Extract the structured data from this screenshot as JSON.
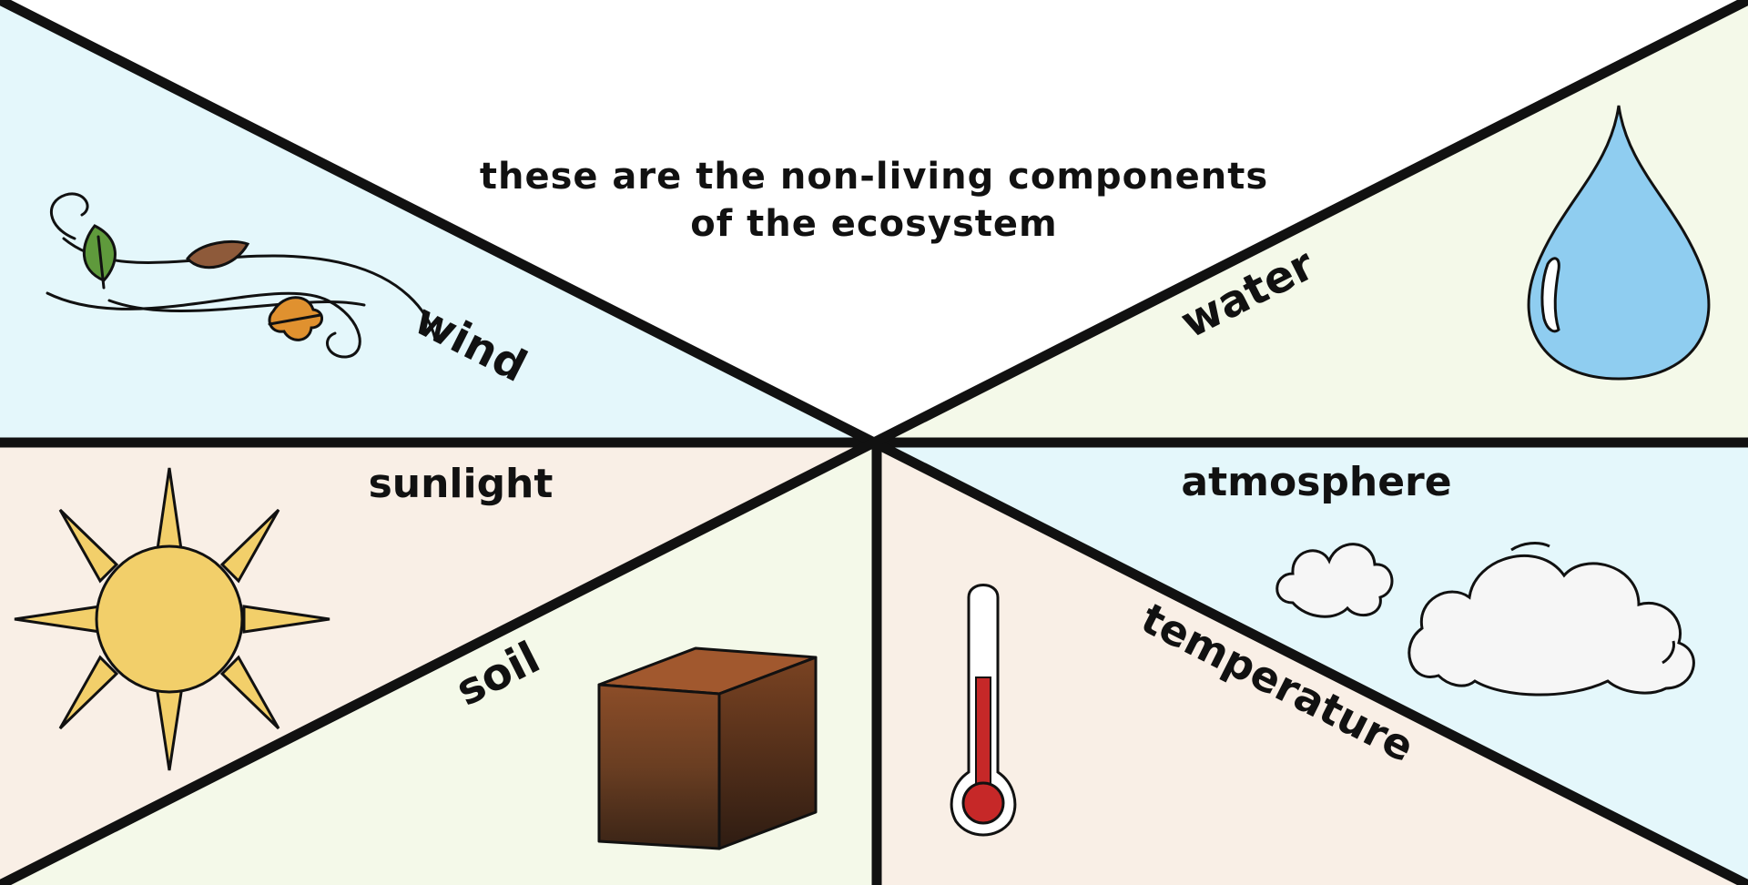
{
  "title": {
    "line1": "these are the non-living components",
    "line2": "of the ecosystem"
  },
  "labels": {
    "wind": "wind",
    "water": "water",
    "sunlight": "sunlight",
    "atmosphere": "atmosphere",
    "soil": "soil",
    "temperature": "temperature"
  },
  "colors": {
    "panel_blue": "#e4f7fb",
    "panel_green": "#f4f9e9",
    "panel_peach": "#f9efe6",
    "line": "#111111",
    "water_drop": "#8fcdf0",
    "sun": "#f2cf6a",
    "leaf_green": "#5f9a3c",
    "leaf_brown": "#8e5a3a",
    "leaf_orange": "#e0912f",
    "soil_top": "#a1582e",
    "soil_dark": "#3a2416",
    "mercury": "#c62828",
    "cloud": "#f6f6f6"
  },
  "icons": [
    "wind-icon",
    "water-drop-icon",
    "sun-icon",
    "cloud-icon",
    "soil-cube-icon",
    "thermometer-icon"
  ]
}
